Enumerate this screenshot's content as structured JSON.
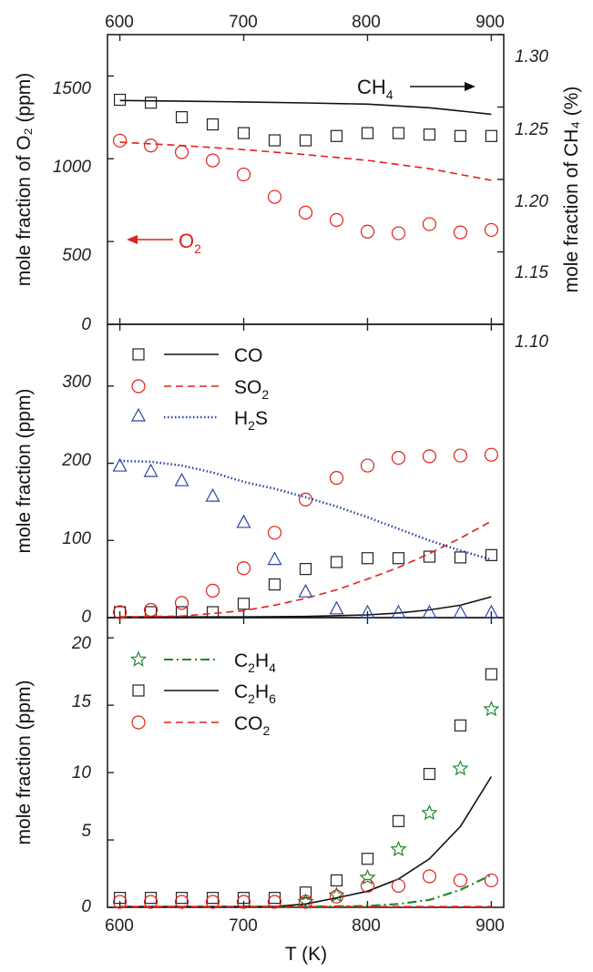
{
  "chart_data": [
    {
      "type": "scatter",
      "panel": "top",
      "xlabel": "",
      "ylabel": "mole fraction of O₂ (ppm)",
      "ylabel_right": "mole fraction of CH₄ (%)",
      "xlim": [
        590,
        910
      ],
      "ylim": [
        0,
        1750
      ],
      "ylim_right": [
        1.1,
        1.3
      ],
      "xticks": [
        600,
        700,
        800,
        900
      ],
      "xtick_labels": [
        "600",
        "700",
        "800",
        "900"
      ],
      "yticks": [
        0,
        500,
        1000,
        1500
      ],
      "ytick_labels": [
        "0",
        "500",
        "1000",
        "1500"
      ],
      "yticks_right": [
        1.1,
        1.15,
        1.2,
        1.25,
        1.3
      ],
      "ytick_labels_right": [
        "1.10",
        "1.15",
        "1.20",
        "1.25",
        "1.30"
      ],
      "annotations": {
        "ch4": {
          "base": "CH",
          "sub": "4",
          "arrow": "right",
          "color": "#111111"
        },
        "o2": {
          "base": "O",
          "sub": "2",
          "arrow": "left",
          "color": "#e0201b"
        }
      },
      "series": [
        {
          "axis": "right",
          "style": "square",
          "color": "#222222",
          "x": [
            600,
            625,
            650,
            675,
            700,
            725,
            750,
            775,
            800,
            825,
            850,
            875,
            900
          ],
          "y": [
            1.255,
            1.253,
            1.243,
            1.238,
            1.232,
            1.227,
            1.227,
            1.23,
            1.232,
            1.232,
            1.231,
            1.23,
            1.23
          ]
        },
        {
          "axis": "right",
          "style": "solid",
          "color": "#111111",
          "x": [
            600,
            650,
            700,
            750,
            800,
            850,
            900
          ],
          "y": [
            1.2545,
            1.254,
            1.2535,
            1.2528,
            1.252,
            1.2495,
            1.245
          ]
        },
        {
          "axis": "left",
          "style": "circle",
          "color": "#e0201b",
          "x": [
            600,
            625,
            650,
            675,
            700,
            725,
            750,
            775,
            800,
            825,
            850,
            875,
            900
          ],
          "y": [
            1110,
            1080,
            1040,
            990,
            905,
            770,
            675,
            630,
            560,
            550,
            605,
            555,
            570
          ]
        },
        {
          "axis": "left",
          "style": "dashed",
          "color": "#e0201b",
          "x": [
            600,
            650,
            700,
            750,
            800,
            850,
            900
          ],
          "y": [
            1100,
            1080,
            1055,
            1025,
            990,
            940,
            870
          ]
        }
      ]
    },
    {
      "type": "scatter",
      "panel": "middle",
      "xlabel": "",
      "ylabel": "mole fraction (ppm)",
      "xlim": [
        590,
        910
      ],
      "ylim": [
        0,
        380
      ],
      "xticks": [
        600,
        700,
        800,
        900
      ],
      "yticks": [
        0,
        100,
        200,
        300
      ],
      "ytick_labels": [
        "0",
        "100",
        "200",
        "300"
      ],
      "legend": [
        {
          "marker": "square",
          "line": "solid",
          "color": "#222222",
          "label": "CO"
        },
        {
          "marker": "circle",
          "line": "dashed",
          "color": "#e0201b",
          "label_base": "SO",
          "label_sub": "2"
        },
        {
          "marker": "triangle",
          "line": "dotted",
          "color": "#2c44a8",
          "label_base": "H",
          "label_sub": "2",
          "label_tail": "S"
        }
      ],
      "series": [
        {
          "name": "CO",
          "style": "square",
          "color": "#222222",
          "x": [
            600,
            625,
            650,
            675,
            700,
            725,
            750,
            775,
            800,
            825,
            850,
            875,
            900
          ],
          "y": [
            0,
            0,
            2,
            6,
            18,
            43,
            63,
            72,
            77,
            77,
            79,
            78,
            81
          ]
        },
        {
          "name": "CO",
          "style": "solid",
          "color": "#111111",
          "x": [
            600,
            650,
            700,
            750,
            800,
            825,
            850,
            875,
            900
          ],
          "y": [
            0,
            0,
            0.5,
            1.5,
            3.5,
            6,
            10,
            16,
            27
          ]
        },
        {
          "name": "SO₂",
          "style": "circle",
          "color": "#e0201b",
          "x": [
            600,
            625,
            650,
            675,
            700,
            725,
            750,
            775,
            800,
            825,
            850,
            875,
            900
          ],
          "y": [
            5,
            10,
            19,
            35,
            64,
            110,
            153,
            181,
            197,
            207,
            209,
            210,
            211
          ]
        },
        {
          "name": "SO₂",
          "style": "dashed",
          "color": "#e0201b",
          "x": [
            600,
            650,
            700,
            725,
            750,
            775,
            800,
            825,
            850,
            875,
            900
          ],
          "y": [
            0,
            2,
            9,
            16,
            25,
            36,
            50,
            65,
            83,
            103,
            125
          ]
        },
        {
          "name": "H₂S",
          "style": "triangle",
          "color": "#2c44a8",
          "x": [
            600,
            625,
            650,
            675,
            700,
            725,
            750,
            775,
            800,
            825,
            850,
            875,
            900
          ],
          "y": [
            197,
            190,
            178,
            158,
            124,
            76,
            34,
            12,
            4,
            2,
            1,
            1,
            1
          ]
        },
        {
          "name": "H₂S",
          "style": "dotted",
          "color": "#2c44a8",
          "x": [
            600,
            625,
            650,
            675,
            700,
            725,
            750,
            775,
            800,
            825,
            850,
            875,
            900
          ],
          "y": [
            203,
            202,
            197,
            188,
            176,
            167,
            156,
            144,
            130,
            115,
            100,
            87,
            75
          ]
        }
      ]
    },
    {
      "type": "scatter",
      "panel": "bottom",
      "xlabel": "T (K)",
      "ylabel": "mole fraction (ppm)",
      "xlim": [
        590,
        910
      ],
      "ylim": [
        0,
        21.5
      ],
      "xticks": [
        600,
        700,
        800,
        900
      ],
      "xtick_labels": [
        "600",
        "700",
        "800",
        "900"
      ],
      "yticks": [
        0,
        5,
        10,
        15,
        20
      ],
      "ytick_labels": [
        "0",
        "5",
        "10",
        "15",
        "20"
      ],
      "legend": [
        {
          "marker": "star",
          "line": "dashdot",
          "color": "#1d8a2e",
          "label_base": "C",
          "label_sub": "2",
          "label_tail": "H",
          "label_sub2": "4"
        },
        {
          "marker": "square",
          "line": "solid",
          "color": "#222222",
          "label_base": "C",
          "label_sub": "2",
          "label_tail": "H",
          "label_sub2": "6"
        },
        {
          "marker": "circle",
          "line": "dashed",
          "color": "#e0201b",
          "label_base": "CO",
          "label_sub": "2"
        }
      ],
      "series": [
        {
          "name": "C₂H₄",
          "style": "star",
          "color": "#1d8a2e",
          "x": [
            750,
            775,
            800,
            825,
            850,
            875,
            900
          ],
          "y": [
            0.2,
            0.9,
            2.2,
            4.3,
            7.0,
            10.3,
            14.7
          ]
        },
        {
          "name": "C₂H₄",
          "style": "dashdot",
          "color": "#1d8a2e",
          "x": [
            700,
            750,
            800,
            825,
            850,
            875,
            900
          ],
          "y": [
            0,
            0.02,
            0.1,
            0.25,
            0.55,
            1.3,
            2.4
          ]
        },
        {
          "name": "C₂H₆",
          "style": "square",
          "color": "#222222",
          "x": [
            600,
            625,
            650,
            675,
            700,
            725,
            750,
            775,
            800,
            825,
            850,
            875,
            900
          ],
          "y": [
            0.7,
            0.7,
            0.7,
            0.7,
            0.7,
            0.7,
            1.1,
            2.0,
            3.6,
            6.4,
            9.9,
            13.5,
            17.3
          ]
        },
        {
          "name": "C₂H₆",
          "style": "solid",
          "color": "#111111",
          "x": [
            600,
            700,
            725,
            750,
            775,
            800,
            825,
            850,
            875,
            900
          ],
          "y": [
            0,
            0,
            0.05,
            0.25,
            0.7,
            1.2,
            2.1,
            3.6,
            6.0,
            9.7
          ]
        },
        {
          "name": "CO₂",
          "style": "circle",
          "color": "#e0201b",
          "x": [
            600,
            625,
            650,
            675,
            700,
            725,
            750,
            775,
            800,
            825,
            850,
            875,
            900
          ],
          "y": [
            0,
            0,
            0,
            0,
            0,
            0.05,
            0.1,
            0.8,
            1.6,
            1.6,
            2.3,
            2.0,
            2.0
          ]
        },
        {
          "name": "CO₂",
          "style": "dashed",
          "color": "#e0201b",
          "x": [
            600,
            700,
            750,
            800,
            850,
            900
          ],
          "y": [
            0,
            0,
            0,
            0,
            0,
            0
          ]
        }
      ]
    }
  ]
}
